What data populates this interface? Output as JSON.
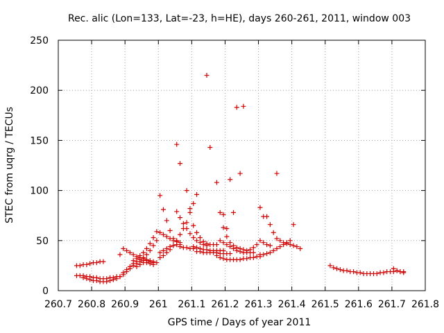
{
  "chart_data": {
    "type": "scatter",
    "title": "Rec. alic (Lon=133, Lat=-23, h=HE), days 260-261, 2011, window 003",
    "xlabel": "GPS time / Days of year 2011",
    "ylabel": "STEC from uqrg / TECUs",
    "xlim": [
      260.7,
      261.8
    ],
    "ylim": [
      0,
      250
    ],
    "x_ticks": [
      "260.7",
      "260.8",
      "260.9",
      "261",
      "261.1",
      "261.2",
      "261.3",
      "261.4",
      "261.5",
      "261.6",
      "261.7",
      "261.8"
    ],
    "x_tick_values": [
      260.7,
      260.8,
      260.9,
      261.0,
      261.1,
      261.2,
      261.3,
      261.4,
      261.5,
      261.6,
      261.7,
      261.8
    ],
    "y_ticks": [
      "0",
      "50",
      "100",
      "150",
      "200",
      "250"
    ],
    "y_tick_values": [
      0,
      50,
      100,
      150,
      200,
      250
    ],
    "grid": true,
    "marker": "plus",
    "color": "#d00000",
    "series": [
      {
        "points": [
          [
            260.755,
            25
          ],
          [
            260.765,
            25
          ],
          [
            260.775,
            26
          ],
          [
            260.785,
            26
          ],
          [
            260.795,
            27
          ],
          [
            260.805,
            28
          ],
          [
            260.815,
            28
          ],
          [
            260.825,
            29
          ],
          [
            260.835,
            29
          ],
          [
            260.755,
            15
          ],
          [
            260.765,
            15
          ],
          [
            260.775,
            15
          ],
          [
            260.785,
            14
          ],
          [
            260.795,
            14
          ],
          [
            260.805,
            13
          ],
          [
            260.815,
            13
          ],
          [
            260.825,
            12
          ],
          [
            260.835,
            12
          ],
          [
            260.845,
            12
          ],
          [
            260.855,
            13
          ],
          [
            260.865,
            13
          ],
          [
            260.875,
            14
          ],
          [
            260.885,
            14
          ],
          [
            260.775,
            13
          ],
          [
            260.785,
            12
          ],
          [
            260.795,
            11
          ],
          [
            260.805,
            10
          ],
          [
            260.815,
            10
          ],
          [
            260.825,
            9
          ],
          [
            260.835,
            9
          ],
          [
            260.845,
            9
          ],
          [
            260.855,
            10
          ],
          [
            260.865,
            11
          ],
          [
            260.875,
            12
          ],
          [
            260.885,
            14
          ],
          [
            260.895,
            16
          ],
          [
            260.905,
            19
          ],
          [
            260.885,
            36
          ],
          [
            260.895,
            42
          ],
          [
            260.905,
            40
          ],
          [
            260.915,
            38
          ],
          [
            260.925,
            36
          ],
          [
            260.935,
            34
          ],
          [
            260.945,
            33
          ],
          [
            260.955,
            32
          ],
          [
            260.965,
            31
          ],
          [
            260.975,
            30
          ],
          [
            260.985,
            29
          ],
          [
            260.895,
            18
          ],
          [
            260.905,
            21
          ],
          [
            260.915,
            24
          ],
          [
            260.925,
            27
          ],
          [
            260.935,
            29
          ],
          [
            260.945,
            31
          ],
          [
            260.955,
            33
          ],
          [
            260.965,
            36
          ],
          [
            260.975,
            40
          ],
          [
            260.985,
            45
          ],
          [
            260.995,
            50
          ],
          [
            260.915,
            22
          ],
          [
            260.925,
            25
          ],
          [
            260.935,
            27
          ],
          [
            260.945,
            29
          ],
          [
            260.955,
            30
          ],
          [
            260.965,
            30
          ],
          [
            260.975,
            29
          ],
          [
            260.985,
            28
          ],
          [
            260.995,
            28
          ],
          [
            260.925,
            30
          ],
          [
            260.935,
            32
          ],
          [
            260.945,
            35
          ],
          [
            260.955,
            38
          ],
          [
            260.965,
            42
          ],
          [
            260.975,
            47
          ],
          [
            260.985,
            53
          ],
          [
            260.995,
            59
          ],
          [
            260.935,
            24
          ],
          [
            260.945,
            26
          ],
          [
            260.955,
            28
          ],
          [
            260.965,
            28
          ],
          [
            260.975,
            27
          ],
          [
            260.985,
            26
          ],
          [
            261.005,
            95
          ],
          [
            261.015,
            81
          ],
          [
            261.025,
            70
          ],
          [
            261.035,
            60
          ],
          [
            261.045,
            52
          ],
          [
            261.055,
            46
          ],
          [
            261.065,
            44
          ],
          [
            261.075,
            43
          ],
          [
            261.085,
            43
          ],
          [
            261.095,
            42
          ],
          [
            261.105,
            42
          ],
          [
            261.005,
            58
          ],
          [
            261.015,
            56
          ],
          [
            261.025,
            54
          ],
          [
            261.035,
            52
          ],
          [
            261.045,
            50
          ],
          [
            261.055,
            49
          ],
          [
            261.065,
            48
          ],
          [
            261.005,
            38
          ],
          [
            261.015,
            40
          ],
          [
            261.025,
            42
          ],
          [
            261.035,
            44
          ],
          [
            261.045,
            45
          ],
          [
            261.055,
            46
          ],
          [
            261.065,
            46
          ],
          [
            261.005,
            33
          ],
          [
            261.015,
            35
          ],
          [
            261.025,
            38
          ],
          [
            261.035,
            41
          ],
          [
            261.045,
            45
          ],
          [
            261.055,
            50
          ],
          [
            261.065,
            56
          ],
          [
            261.075,
            62
          ],
          [
            261.085,
            68
          ],
          [
            261.055,
            79
          ],
          [
            261.065,
            73
          ],
          [
            261.075,
            67
          ],
          [
            261.085,
            62
          ],
          [
            261.095,
            57
          ],
          [
            261.105,
            53
          ],
          [
            261.115,
            50
          ],
          [
            261.125,
            48
          ],
          [
            261.135,
            46
          ],
          [
            261.145,
            45
          ],
          [
            261.055,
            146
          ],
          [
            261.065,
            127
          ],
          [
            261.085,
            100
          ],
          [
            261.095,
            82
          ],
          [
            261.105,
            87
          ],
          [
            261.115,
            96
          ],
          [
            261.095,
            78
          ],
          [
            261.105,
            65
          ],
          [
            261.115,
            58
          ],
          [
            261.125,
            53
          ],
          [
            261.135,
            49
          ],
          [
            261.145,
            47
          ],
          [
            261.155,
            46
          ],
          [
            261.165,
            46
          ],
          [
            261.175,
            46
          ],
          [
            261.105,
            44
          ],
          [
            261.115,
            43
          ],
          [
            261.125,
            42
          ],
          [
            261.135,
            41
          ],
          [
            261.145,
            41
          ],
          [
            261.155,
            40
          ],
          [
            261.165,
            40
          ],
          [
            261.175,
            40
          ],
          [
            261.185,
            40
          ],
          [
            261.195,
            40
          ],
          [
            261.115,
            39
          ],
          [
            261.125,
            39
          ],
          [
            261.135,
            38
          ],
          [
            261.145,
            38
          ],
          [
            261.155,
            38
          ],
          [
            261.165,
            38
          ],
          [
            261.175,
            38
          ],
          [
            261.185,
            37
          ],
          [
            261.195,
            37
          ],
          [
            261.205,
            37
          ],
          [
            261.215,
            37
          ],
          [
            261.145,
            215
          ],
          [
            261.155,
            143
          ],
          [
            261.175,
            108
          ],
          [
            261.185,
            78
          ],
          [
            261.195,
            63
          ],
          [
            261.205,
            62
          ],
          [
            261.215,
            111
          ],
          [
            261.235,
            183
          ],
          [
            261.245,
            117
          ],
          [
            261.255,
            184
          ],
          [
            261.185,
            50
          ],
          [
            261.195,
            48
          ],
          [
            261.205,
            46
          ],
          [
            261.215,
            44
          ],
          [
            261.225,
            42
          ],
          [
            261.235,
            40
          ],
          [
            261.245,
            39
          ],
          [
            261.255,
            38
          ],
          [
            261.265,
            38
          ],
          [
            261.275,
            38
          ],
          [
            261.285,
            38
          ],
          [
            261.175,
            35
          ],
          [
            261.185,
            33
          ],
          [
            261.195,
            32
          ],
          [
            261.205,
            31
          ],
          [
            261.215,
            31
          ],
          [
            261.225,
            31
          ],
          [
            261.235,
            31
          ],
          [
            261.245,
            31
          ],
          [
            261.255,
            32
          ],
          [
            261.265,
            32
          ],
          [
            261.275,
            33
          ],
          [
            261.285,
            33
          ],
          [
            261.295,
            34
          ],
          [
            261.305,
            34
          ],
          [
            261.225,
            78
          ],
          [
            261.195,
            76
          ],
          [
            261.205,
            54
          ],
          [
            261.215,
            48
          ],
          [
            261.225,
            45
          ],
          [
            261.235,
            43
          ],
          [
            261.245,
            42
          ],
          [
            261.255,
            41
          ],
          [
            261.265,
            40
          ],
          [
            261.275,
            41
          ],
          [
            261.285,
            43
          ],
          [
            261.295,
            46
          ],
          [
            261.305,
            83
          ],
          [
            261.315,
            74
          ],
          [
            261.325,
            74
          ],
          [
            261.335,
            66
          ],
          [
            261.345,
            58
          ],
          [
            261.355,
            117
          ],
          [
            261.305,
            50
          ],
          [
            261.315,
            48
          ],
          [
            261.325,
            46
          ],
          [
            261.335,
            45
          ],
          [
            261.305,
            36
          ],
          [
            261.315,
            36
          ],
          [
            261.325,
            37
          ],
          [
            261.335,
            38
          ],
          [
            261.345,
            40
          ],
          [
            261.355,
            42
          ],
          [
            261.365,
            44
          ],
          [
            261.375,
            46
          ],
          [
            261.385,
            48
          ],
          [
            261.395,
            50
          ],
          [
            261.405,
            66
          ],
          [
            261.355,
            52
          ],
          [
            261.365,
            50
          ],
          [
            261.375,
            48
          ],
          [
            261.385,
            47
          ],
          [
            261.395,
            46
          ],
          [
            261.405,
            45
          ],
          [
            261.415,
            44
          ],
          [
            261.425,
            42
          ],
          [
            261.515,
            25
          ],
          [
            261.525,
            23
          ],
          [
            261.535,
            22
          ],
          [
            261.545,
            21
          ],
          [
            261.555,
            20
          ],
          [
            261.565,
            20
          ],
          [
            261.575,
            19
          ],
          [
            261.585,
            19
          ],
          [
            261.595,
            18
          ],
          [
            261.605,
            18
          ],
          [
            261.615,
            17
          ],
          [
            261.625,
            17
          ],
          [
            261.635,
            17
          ],
          [
            261.645,
            17
          ],
          [
            261.655,
            17
          ],
          [
            261.665,
            18
          ],
          [
            261.675,
            18
          ],
          [
            261.685,
            19
          ],
          [
            261.695,
            19
          ],
          [
            261.705,
            19
          ],
          [
            261.715,
            20
          ],
          [
            261.725,
            19
          ],
          [
            261.735,
            19
          ],
          [
            261.705,
            22
          ],
          [
            261.715,
            20
          ],
          [
            261.725,
            19
          ],
          [
            261.735,
            18
          ]
        ]
      }
    ]
  }
}
